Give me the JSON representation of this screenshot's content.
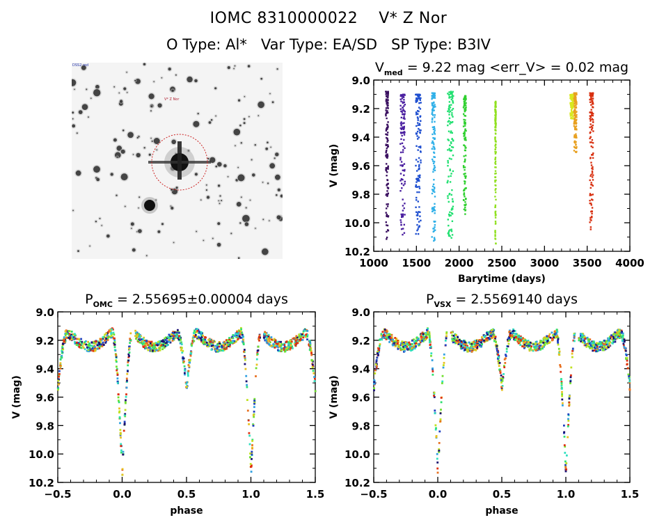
{
  "header": {
    "title": "IOMC 8310000022    V* Z Nor",
    "subtitle": "O Type: Al*   Var Type: EA/SD   SP Type: B3IV"
  },
  "sky_image": {
    "target_label": "V* Z Nor",
    "top_left_label": "DSS2 red",
    "aperture_color": "#cc2222",
    "star_field": "grayscale DSS cutout centered on bright target star with diffraction spikes"
  },
  "chart_data": [
    {
      "type": "scatter",
      "title": "V_med = 9.22 mag <err_V> = 0.02 mag",
      "title_parts": {
        "v": "V",
        "sub": "med",
        "rest": " = 9.22 mag <err_V> = 0.02 mag"
      },
      "xlabel": "Barytime (days)",
      "ylabel": "V (mag)",
      "xlim": [
        1000,
        4000
      ],
      "ylim": [
        10.2,
        9.0
      ],
      "y_inverted": true,
      "xticks": [
        1000,
        1500,
        2000,
        2500,
        3000,
        3500,
        4000
      ],
      "xtick_labels": [
        "1000",
        "1500",
        "2000",
        "2500",
        "3000",
        "3500",
        "4000"
      ],
      "yticks": [
        9.0,
        9.2,
        9.4,
        9.6,
        9.8,
        10.0,
        10.2
      ],
      "ytick_labels": [
        "9.0",
        "9.2",
        "9.4",
        "9.6",
        "9.8",
        "10.0",
        "10.2"
      ],
      "color_scale": "rainbow by time",
      "clusters": [
        {
          "x_start": 1140,
          "x_end": 1170,
          "y_min": 9.08,
          "y_max": 10.12,
          "color": "#3a1060"
        },
        {
          "x_start": 1310,
          "x_end": 1365,
          "y_min": 9.1,
          "y_max": 10.1,
          "color": "#4a1fa0"
        },
        {
          "x_start": 1490,
          "x_end": 1550,
          "y_min": 9.1,
          "y_max": 10.1,
          "color": "#1f4fd0"
        },
        {
          "x_start": 1680,
          "x_end": 1720,
          "y_min": 9.09,
          "y_max": 10.14,
          "color": "#30b0e8"
        },
        {
          "x_start": 1860,
          "x_end": 1930,
          "y_min": 9.08,
          "y_max": 10.13,
          "color": "#20e070"
        },
        {
          "x_start": 2050,
          "x_end": 2080,
          "y_min": 9.11,
          "y_max": 9.95,
          "color": "#30d030"
        },
        {
          "x_start": 2420,
          "x_end": 2430,
          "y_min": 9.15,
          "y_max": 10.15,
          "color": "#90e020"
        },
        {
          "x_start": 3300,
          "x_end": 3340,
          "y_min": 9.1,
          "y_max": 9.27,
          "color": "#d8e820"
        },
        {
          "x_start": 3345,
          "x_end": 3375,
          "y_min": 9.09,
          "y_max": 9.51,
          "color": "#e8a020"
        },
        {
          "x_start": 3530,
          "x_end": 3570,
          "y_min": 9.09,
          "y_max": 10.07,
          "color": "#d83010"
        }
      ]
    },
    {
      "type": "scatter",
      "title": "P_OMC = 2.55695±0.00004 days",
      "title_parts": {
        "v": "P",
        "sub": "OMC",
        "rest": " = 2.55695±0.00004 days"
      },
      "xlabel": "phase",
      "ylabel": "V (mag)",
      "xlim": [
        -0.5,
        1.5
      ],
      "ylim": [
        10.2,
        9.0
      ],
      "y_inverted": true,
      "xticks": [
        -0.5,
        0.0,
        0.5,
        1.0,
        1.5
      ],
      "xtick_labels": [
        "−0.5",
        "0.0",
        "0.5",
        "1.0",
        "1.5"
      ],
      "yticks": [
        9.0,
        9.2,
        9.4,
        9.6,
        9.8,
        10.0,
        10.2
      ],
      "ytick_labels": [
        "9.0",
        "9.2",
        "9.4",
        "9.6",
        "9.8",
        "10.0",
        "10.2"
      ],
      "period_days": 2.55695,
      "period_error": 4e-05,
      "light_curve": {
        "max_mag": 9.12,
        "primary_min": {
          "phase": 0.0,
          "mag": 10.14
        },
        "secondary_min": {
          "phase": 0.5,
          "mag": 9.53
        },
        "gaps": [
          [
            0.07,
            0.1
          ],
          [
            1.07,
            1.1
          ]
        ]
      }
    },
    {
      "type": "scatter",
      "title": "P_VSX = 2.5569140 days",
      "title_parts": {
        "v": "P",
        "sub": "VSX",
        "rest": " = 2.5569140 days"
      },
      "xlabel": "phase",
      "ylabel": "V (mag)",
      "xlim": [
        -0.5,
        1.5
      ],
      "ylim": [
        10.2,
        9.0
      ],
      "y_inverted": true,
      "xticks": [
        -0.5,
        0.0,
        0.5,
        1.0,
        1.5
      ],
      "xtick_labels": [
        "−0.5",
        "0.0",
        "0.5",
        "1.0",
        "1.5"
      ],
      "yticks": [
        9.0,
        9.2,
        9.4,
        9.6,
        9.8,
        10.0,
        10.2
      ],
      "ytick_labels": [
        "9.0",
        "9.2",
        "9.4",
        "9.6",
        "9.8",
        "10.0",
        "10.2"
      ],
      "period_days": 2.556914,
      "light_curve": {
        "max_mag": 9.12,
        "primary_min": {
          "phase": 0.0,
          "mag": 10.14
        },
        "secondary_min": {
          "phase": 0.5,
          "mag": 9.53
        },
        "gaps": [
          [
            0.07,
            0.1
          ],
          [
            1.07,
            1.1
          ]
        ]
      }
    }
  ]
}
